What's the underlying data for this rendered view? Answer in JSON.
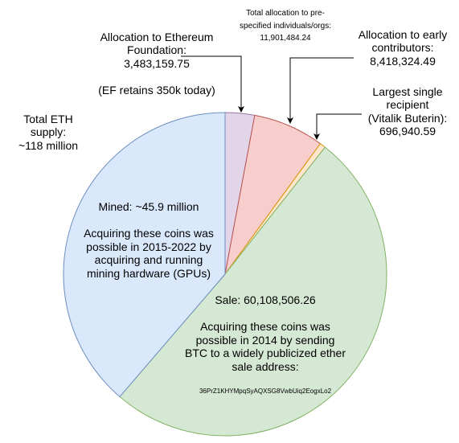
{
  "total_supply": {
    "lines": [
      "Total ETH",
      "supply:",
      "~118 million"
    ]
  },
  "ef_allocation": {
    "lines": [
      "Allocation to Ethereum",
      "Foundation:",
      "3,483,159.75",
      "",
      "(EF retains 350k today)"
    ],
    "color": "#e1d5e7"
  },
  "prespecified_allocation": {
    "lines": [
      "Total allocation to pre-",
      "specified individuals/orgs:",
      "11,901,484.24"
    ]
  },
  "early_contributors": {
    "lines": [
      "Allocation to early",
      "contributors:",
      "8,418,324.49"
    ],
    "color": "#f8cecc"
  },
  "largest_recipient": {
    "lines": [
      "Largest single",
      "recipient",
      "(Vitalik Buterin):",
      "696,940.59"
    ],
    "color": "#ffe6cc"
  },
  "mined": {
    "lines": [
      "Mined: ~45.9 million",
      "",
      "Acquiring these coins was",
      "possible in 2015-2022 by",
      "acquiring and running",
      "mining hardware (GPUs)"
    ],
    "color": "#dae8fc",
    "stroke": "#6c8ebf"
  },
  "sale": {
    "lines": [
      "Sale: 60,108,506.26",
      "",
      "Acquiring these coins was",
      "possible in 2014 by sending",
      "BTC to a widely publicized ether",
      "sale address:"
    ],
    "address": "36PrZ1KHYMpqSyAQXSG8VwbUiq2EogxLo2",
    "color": "#d5e8d4",
    "stroke": "#82b366"
  },
  "pie_shares": [
    {
      "slice": "ef",
      "share": 3483159.75,
      "color": "#e1d5e7",
      "stroke": "#9673a6"
    },
    {
      "slice": "early",
      "share": 8418324.49,
      "color": "#f8cecc",
      "stroke": "#b85450"
    },
    {
      "slice": "vitalik",
      "share": 696940.59,
      "color": "#ffe6cc",
      "stroke": "#d79b00"
    },
    {
      "slice": "sale",
      "share": 60108506.26,
      "color": "#d5e8d4",
      "stroke": "#82b366"
    },
    {
      "slice": "mined",
      "share": 45900000,
      "color": "#dae8fc",
      "stroke": "#6c8ebf"
    }
  ]
}
